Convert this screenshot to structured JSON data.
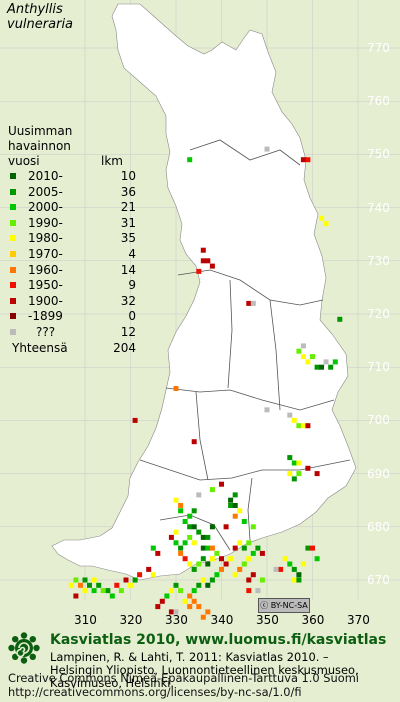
{
  "species": {
    "genus": "Anthyllis",
    "epithet": "vulneraria"
  },
  "legend": {
    "title_lines": [
      "Uusimman",
      "havainnon",
      "vuosi"
    ],
    "count_header": "lkm",
    "items": [
      {
        "label": "2010-",
        "count": "10",
        "color": "#006400"
      },
      {
        "label": "2005-",
        "count": "36",
        "color": "#009600"
      },
      {
        "label": "2000-",
        "count": "21",
        "color": "#00c800"
      },
      {
        "label": "1990-",
        "count": "31",
        "color": "#66ee00"
      },
      {
        "label": "1980-",
        "count": "35",
        "color": "#ffff00"
      },
      {
        "label": "1970-",
        "count": "4",
        "color": "#ffcc00"
      },
      {
        "label": "1960-",
        "count": "14",
        "color": "#ff7700"
      },
      {
        "label": "1950-",
        "count": "9",
        "color": "#ee1100"
      },
      {
        "label": "1900-",
        "count": "32",
        "color": "#bb0000"
      },
      {
        "label": "-1899",
        "count": "0",
        "color": "#880000"
      },
      {
        "label": "???",
        "count": "12",
        "color": "#bbbbbb"
      }
    ],
    "total_label": "Yhteensä",
    "total_count": "204"
  },
  "axes": {
    "y_ticks": [
      "770",
      "760",
      "750",
      "740",
      "730",
      "720",
      "710",
      "700",
      "690",
      "680",
      "670"
    ],
    "x_ticks": [
      "310",
      "320",
      "330",
      "340",
      "350",
      "360",
      "370"
    ]
  },
  "license_badge": "BY-NC-SA",
  "footer": {
    "title": "Kasviatlas 2010, www.luomus.fi/kasviatlas",
    "citation_lines": [
      "Lampinen, R. & Lahti, T. 2011: Kasviatlas 2010. –",
      "Helsingin Yliopisto, Luonnontieteellinen keskusmuseo,",
      "Kasvimuseo, Helsinki."
    ],
    "license_lines": [
      "Creative Commons Nimeä-Epäkaupallinen-Tarttuva 1.0 Suomi",
      "http://creativecommons.org/licenses/by-nc-sa/1.0/fi"
    ]
  },
  "colors": {
    "background": "#e6eed2",
    "land": "#ffffff",
    "grid": "#c8c8c8",
    "boundary": "#555555",
    "title_green": "#0c5f11"
  },
  "records": [
    {
      "x": 358,
      "y": 749,
      "c": 8
    },
    {
      "x": 359,
      "y": 749,
      "c": 7
    },
    {
      "x": 333,
      "y": 749,
      "c": 2
    },
    {
      "x": 350,
      "y": 751,
      "c": 10
    },
    {
      "x": 362,
      "y": 738,
      "c": 4
    },
    {
      "x": 363,
      "y": 737,
      "c": 4
    },
    {
      "x": 336,
      "y": 732,
      "c": 8
    },
    {
      "x": 336,
      "y": 730,
      "c": 8
    },
    {
      "x": 337,
      "y": 730,
      "c": 8
    },
    {
      "x": 338,
      "y": 729,
      "c": 8
    },
    {
      "x": 335,
      "y": 728,
      "c": 7
    },
    {
      "x": 346,
      "y": 722,
      "c": 8
    },
    {
      "x": 347,
      "y": 722,
      "c": 10
    },
    {
      "x": 366,
      "y": 719,
      "c": 1
    },
    {
      "x": 358,
      "y": 712,
      "c": 4
    },
    {
      "x": 359,
      "y": 711,
      "c": 4
    },
    {
      "x": 360,
      "y": 712,
      "c": 3
    },
    {
      "x": 361,
      "y": 710,
      "c": 1
    },
    {
      "x": 362,
      "y": 710,
      "c": 0
    },
    {
      "x": 363,
      "y": 711,
      "c": 10
    },
    {
      "x": 364,
      "y": 710,
      "c": 1
    },
    {
      "x": 365,
      "y": 711,
      "c": 2
    },
    {
      "x": 357,
      "y": 713,
      "c": 3
    },
    {
      "x": 358,
      "y": 714,
      "c": 10
    },
    {
      "x": 330,
      "y": 706,
      "c": 6
    },
    {
      "x": 321,
      "y": 700,
      "c": 8
    },
    {
      "x": 355,
      "y": 701,
      "c": 10
    },
    {
      "x": 350,
      "y": 702,
      "c": 10
    },
    {
      "x": 356,
      "y": 700,
      "c": 4
    },
    {
      "x": 357,
      "y": 699,
      "c": 3
    },
    {
      "x": 358,
      "y": 699,
      "c": 4
    },
    {
      "x": 359,
      "y": 699,
      "c": 8
    },
    {
      "x": 334,
      "y": 696,
      "c": 8
    },
    {
      "x": 355,
      "y": 693,
      "c": 1
    },
    {
      "x": 356,
      "y": 692,
      "c": 2
    },
    {
      "x": 357,
      "y": 692,
      "c": 4
    },
    {
      "x": 355,
      "y": 690,
      "c": 4
    },
    {
      "x": 356,
      "y": 689,
      "c": 1
    },
    {
      "x": 357,
      "y": 690,
      "c": 3
    },
    {
      "x": 359,
      "y": 691,
      "c": 8
    },
    {
      "x": 361,
      "y": 690,
      "c": 8
    },
    {
      "x": 335,
      "y": 686,
      "c": 10
    },
    {
      "x": 338,
      "y": 687,
      "c": 3
    },
    {
      "x": 340,
      "y": 688,
      "c": 8
    },
    {
      "x": 342,
      "y": 685,
      "c": 0
    },
    {
      "x": 343,
      "y": 686,
      "c": 1
    },
    {
      "x": 342,
      "y": 684,
      "c": 1
    },
    {
      "x": 343,
      "y": 684,
      "c": 0
    },
    {
      "x": 344,
      "y": 683,
      "c": 4
    },
    {
      "x": 343,
      "y": 682,
      "c": 6
    },
    {
      "x": 341,
      "y": 680,
      "c": 8
    },
    {
      "x": 347,
      "y": 680,
      "c": 3
    },
    {
      "x": 345,
      "y": 681,
      "c": 2
    },
    {
      "x": 330,
      "y": 685,
      "c": 4
    },
    {
      "x": 331,
      "y": 684,
      "c": 6
    },
    {
      "x": 331,
      "y": 683,
      "c": 2
    },
    {
      "x": 333,
      "y": 682,
      "c": 2
    },
    {
      "x": 334,
      "y": 683,
      "c": 1
    },
    {
      "x": 332,
      "y": 681,
      "c": 2
    },
    {
      "x": 333,
      "y": 680,
      "c": 1
    },
    {
      "x": 334,
      "y": 680,
      "c": 0
    },
    {
      "x": 335,
      "y": 679,
      "c": 1
    },
    {
      "x": 336,
      "y": 678,
      "c": 0
    },
    {
      "x": 337,
      "y": 678,
      "c": 1
    },
    {
      "x": 338,
      "y": 680,
      "c": 0
    },
    {
      "x": 336,
      "y": 676,
      "c": 0
    },
    {
      "x": 337,
      "y": 676,
      "c": 2
    },
    {
      "x": 338,
      "y": 676,
      "c": 6
    },
    {
      "x": 334,
      "y": 677,
      "c": 4
    },
    {
      "x": 333,
      "y": 678,
      "c": 3
    },
    {
      "x": 332,
      "y": 677,
      "c": 2
    },
    {
      "x": 331,
      "y": 676,
      "c": 1
    },
    {
      "x": 330,
      "y": 677,
      "c": 2
    },
    {
      "x": 329,
      "y": 678,
      "c": 8
    },
    {
      "x": 330,
      "y": 679,
      "c": 4
    },
    {
      "x": 331,
      "y": 675,
      "c": 6
    },
    {
      "x": 332,
      "y": 674,
      "c": 7
    },
    {
      "x": 333,
      "y": 673,
      "c": 4
    },
    {
      "x": 334,
      "y": 672,
      "c": 1
    },
    {
      "x": 335,
      "y": 673,
      "c": 3
    },
    {
      "x": 336,
      "y": 674,
      "c": 1
    },
    {
      "x": 337,
      "y": 673,
      "c": 0
    },
    {
      "x": 338,
      "y": 674,
      "c": 4
    },
    {
      "x": 339,
      "y": 675,
      "c": 3
    },
    {
      "x": 340,
      "y": 674,
      "c": 8
    },
    {
      "x": 341,
      "y": 673,
      "c": 8
    },
    {
      "x": 342,
      "y": 674,
      "c": 4
    },
    {
      "x": 340,
      "y": 672,
      "c": 6
    },
    {
      "x": 339,
      "y": 671,
      "c": 2
    },
    {
      "x": 338,
      "y": 670,
      "c": 1
    },
    {
      "x": 337,
      "y": 669,
      "c": 0
    },
    {
      "x": 336,
      "y": 670,
      "c": 4
    },
    {
      "x": 335,
      "y": 669,
      "c": 1
    },
    {
      "x": 334,
      "y": 668,
      "c": 2
    },
    {
      "x": 333,
      "y": 667,
      "c": 6
    },
    {
      "x": 334,
      "y": 666,
      "c": 6
    },
    {
      "x": 333,
      "y": 665,
      "c": 6
    },
    {
      "x": 335,
      "y": 665,
      "c": 6
    },
    {
      "x": 332,
      "y": 666,
      "c": 4
    },
    {
      "x": 331,
      "y": 668,
      "c": 3
    },
    {
      "x": 330,
      "y": 669,
      "c": 1
    },
    {
      "x": 329,
      "y": 668,
      "c": 4
    },
    {
      "x": 328,
      "y": 667,
      "c": 2
    },
    {
      "x": 327,
      "y": 666,
      "c": 8
    },
    {
      "x": 326,
      "y": 665,
      "c": 8
    },
    {
      "x": 324,
      "y": 672,
      "c": 8
    },
    {
      "x": 325,
      "y": 676,
      "c": 2
    },
    {
      "x": 326,
      "y": 675,
      "c": 8
    },
    {
      "x": 325,
      "y": 671,
      "c": 4
    },
    {
      "x": 322,
      "y": 671,
      "c": 7
    },
    {
      "x": 321,
      "y": 670,
      "c": 1
    },
    {
      "x": 320,
      "y": 669,
      "c": 4
    },
    {
      "x": 319,
      "y": 670,
      "c": 8
    },
    {
      "x": 318,
      "y": 668,
      "c": 3
    },
    {
      "x": 317,
      "y": 669,
      "c": 7
    },
    {
      "x": 316,
      "y": 667,
      "c": 2
    },
    {
      "x": 315,
      "y": 668,
      "c": 1
    },
    {
      "x": 314,
      "y": 668,
      "c": 3
    },
    {
      "x": 313,
      "y": 669,
      "c": 1
    },
    {
      "x": 312,
      "y": 670,
      "c": 4
    },
    {
      "x": 311,
      "y": 669,
      "c": 1
    },
    {
      "x": 310,
      "y": 670,
      "c": 1
    },
    {
      "x": 309,
      "y": 669,
      "c": 6
    },
    {
      "x": 308,
      "y": 670,
      "c": 3
    },
    {
      "x": 312,
      "y": 668,
      "c": 2
    },
    {
      "x": 310,
      "y": 668,
      "c": 4
    },
    {
      "x": 308,
      "y": 667,
      "c": 8
    },
    {
      "x": 307,
      "y": 669,
      "c": 4
    },
    {
      "x": 343,
      "y": 676,
      "c": 8
    },
    {
      "x": 344,
      "y": 677,
      "c": 4
    },
    {
      "x": 345,
      "y": 676,
      "c": 1
    },
    {
      "x": 346,
      "y": 677,
      "c": 3
    },
    {
      "x": 347,
      "y": 675,
      "c": 2
    },
    {
      "x": 348,
      "y": 676,
      "c": 1
    },
    {
      "x": 349,
      "y": 675,
      "c": 8
    },
    {
      "x": 346,
      "y": 674,
      "c": 4
    },
    {
      "x": 345,
      "y": 673,
      "c": 3
    },
    {
      "x": 344,
      "y": 672,
      "c": 6
    },
    {
      "x": 343,
      "y": 671,
      "c": 4
    },
    {
      "x": 346,
      "y": 670,
      "c": 8
    },
    {
      "x": 347,
      "y": 671,
      "c": 8
    },
    {
      "x": 349,
      "y": 670,
      "c": 3
    },
    {
      "x": 353,
      "y": 672,
      "c": 7
    },
    {
      "x": 354,
      "y": 674,
      "c": 4
    },
    {
      "x": 355,
      "y": 673,
      "c": 2
    },
    {
      "x": 356,
      "y": 672,
      "c": 1
    },
    {
      "x": 357,
      "y": 671,
      "c": 0
    },
    {
      "x": 358,
      "y": 673,
      "c": 4
    },
    {
      "x": 359,
      "y": 676,
      "c": 1
    },
    {
      "x": 360,
      "y": 676,
      "c": 7
    },
    {
      "x": 361,
      "y": 674,
      "c": 2
    },
    {
      "x": 356,
      "y": 670,
      "c": 4
    },
    {
      "x": 357,
      "y": 670,
      "c": 1
    },
    {
      "x": 336,
      "y": 663,
      "c": 6
    },
    {
      "x": 337,
      "y": 664,
      "c": 6
    },
    {
      "x": 329,
      "y": 664,
      "c": 8
    },
    {
      "x": 330,
      "y": 664,
      "c": 10
    },
    {
      "x": 348,
      "y": 668,
      "c": 10
    },
    {
      "x": 346,
      "y": 668,
      "c": 7
    },
    {
      "x": 352,
      "y": 672,
      "c": 10
    }
  ]
}
